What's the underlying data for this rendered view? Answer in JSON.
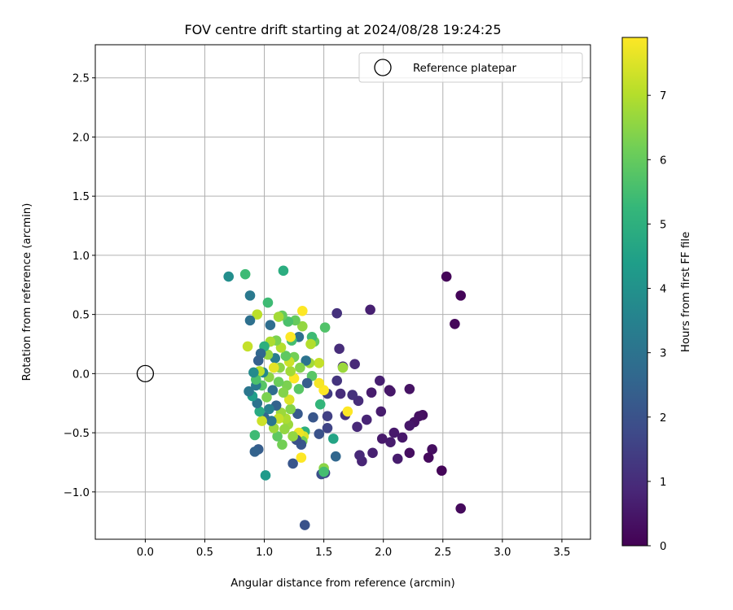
{
  "chart_data": {
    "type": "scatter",
    "title": "FOV centre drift starting at 2024/08/28 19:24:25",
    "xlabel": "Angular distance from reference (arcmin)",
    "ylabel": "Rotation from reference (arcmin)",
    "xlim": [
      -0.42,
      3.74
    ],
    "ylim": [
      -1.4,
      2.78
    ],
    "xticks": [
      0.0,
      0.5,
      1.0,
      1.5,
      2.0,
      2.5,
      3.0,
      3.5
    ],
    "xtick_labels": [
      "0.0",
      "0.5",
      "1.0",
      "1.5",
      "2.0",
      "2.5",
      "3.0",
      "3.5"
    ],
    "yticks": [
      -1.0,
      -0.5,
      0.0,
      0.5,
      1.0,
      1.5,
      2.0,
      2.5
    ],
    "ytick_labels": [
      "−1.0",
      "−0.5",
      "0.0",
      "0.5",
      "1.0",
      "1.5",
      "2.0",
      "2.5"
    ],
    "grid": true,
    "legend": {
      "placement": "top-right",
      "entries": [
        "Reference platepar"
      ]
    },
    "reference_point": {
      "x": 0.0,
      "y": 0.0
    },
    "colorbar": {
      "label": "Hours from first FF file",
      "colormap": "viridis",
      "range": [
        0,
        7.9
      ],
      "ticks": [
        0,
        1,
        2,
        3,
        4,
        5,
        6,
        7
      ],
      "tick_labels": [
        "0",
        "1",
        "2",
        "3",
        "4",
        "5",
        "6",
        "7"
      ],
      "colors": [
        "#440154",
        "#482878",
        "#3e4a89",
        "#31688e",
        "#26828e",
        "#1f9e89",
        "#35b779",
        "#6ece58",
        "#b5de2b",
        "#fde725"
      ]
    },
    "points": [
      {
        "x": 2.53,
        "y": 0.82,
        "t": 0.1
      },
      {
        "x": 2.65,
        "y": 0.66,
        "t": 0.1
      },
      {
        "x": 2.6,
        "y": 0.42,
        "t": 0.15
      },
      {
        "x": 2.49,
        "y": -0.82,
        "t": 0.1
      },
      {
        "x": 2.65,
        "y": -1.14,
        "t": 0.2
      },
      {
        "x": 2.41,
        "y": -0.64,
        "t": 0.3
      },
      {
        "x": 2.38,
        "y": -0.71,
        "t": 0.2
      },
      {
        "x": 2.33,
        "y": -0.35,
        "t": 0.3
      },
      {
        "x": 2.3,
        "y": -0.36,
        "t": 0.35
      },
      {
        "x": 2.26,
        "y": -0.41,
        "t": 0.4
      },
      {
        "x": 2.22,
        "y": -0.44,
        "t": 0.5
      },
      {
        "x": 2.22,
        "y": -0.67,
        "t": 0.3
      },
      {
        "x": 2.16,
        "y": -0.54,
        "t": 0.5
      },
      {
        "x": 2.12,
        "y": -0.72,
        "t": 0.6
      },
      {
        "x": 2.09,
        "y": -0.5,
        "t": 0.55
      },
      {
        "x": 2.06,
        "y": -0.58,
        "t": 0.6
      },
      {
        "x": 1.99,
        "y": -0.55,
        "t": 0.55
      },
      {
        "x": 2.05,
        "y": -0.14,
        "t": 0.45
      },
      {
        "x": 2.06,
        "y": -0.15,
        "t": 0.5
      },
      {
        "x": 2.22,
        "y": -0.13,
        "t": 0.4
      },
      {
        "x": 1.97,
        "y": -0.06,
        "t": 0.7
      },
      {
        "x": 1.98,
        "y": -0.32,
        "t": 0.6
      },
      {
        "x": 1.9,
        "y": -0.16,
        "t": 0.6
      },
      {
        "x": 1.89,
        "y": 0.54,
        "t": 0.7
      },
      {
        "x": 1.91,
        "y": -0.67,
        "t": 0.7
      },
      {
        "x": 1.82,
        "y": -0.74,
        "t": 0.8
      },
      {
        "x": 1.8,
        "y": -0.69,
        "t": 0.9
      },
      {
        "x": 1.86,
        "y": -0.39,
        "t": 0.8
      },
      {
        "x": 1.78,
        "y": -0.45,
        "t": 0.9
      },
      {
        "x": 1.79,
        "y": -0.23,
        "t": 1.0
      },
      {
        "x": 1.74,
        "y": -0.18,
        "t": 1.1
      },
      {
        "x": 1.76,
        "y": 0.08,
        "t": 0.9
      },
      {
        "x": 1.66,
        "y": 0.06,
        "t": 1.0
      },
      {
        "x": 1.63,
        "y": 0.21,
        "t": 1.0
      },
      {
        "x": 1.61,
        "y": 0.51,
        "t": 1.1
      },
      {
        "x": 1.61,
        "y": -0.06,
        "t": 1.2
      },
      {
        "x": 1.64,
        "y": -0.17,
        "t": 1.0
      },
      {
        "x": 1.68,
        "y": -0.35,
        "t": 1.1
      },
      {
        "x": 1.7,
        "y": -0.32,
        "t": 7.9
      },
      {
        "x": 1.66,
        "y": 0.05,
        "t": 6.7
      },
      {
        "x": 1.6,
        "y": -0.7,
        "t": 2.6
      },
      {
        "x": 1.58,
        "y": -0.55,
        "t": 4.6
      },
      {
        "x": 1.53,
        "y": -0.46,
        "t": 1.6
      },
      {
        "x": 1.53,
        "y": -0.36,
        "t": 1.5
      },
      {
        "x": 1.53,
        "y": -0.17,
        "t": 1.4
      },
      {
        "x": 1.51,
        "y": -0.84,
        "t": 1.7
      },
      {
        "x": 1.48,
        "y": -0.85,
        "t": 1.9
      },
      {
        "x": 1.5,
        "y": -0.8,
        "t": 6.5
      },
      {
        "x": 1.5,
        "y": -0.83,
        "t": 5.5
      },
      {
        "x": 1.51,
        "y": 0.39,
        "t": 5.7
      },
      {
        "x": 1.5,
        "y": -0.14,
        "t": 7.9
      },
      {
        "x": 1.46,
        "y": 0.09,
        "t": 7.2
      },
      {
        "x": 1.46,
        "y": -0.08,
        "t": 7.8
      },
      {
        "x": 1.47,
        "y": -0.26,
        "t": 5.2
      },
      {
        "x": 1.46,
        "y": -0.51,
        "t": 2.0
      },
      {
        "x": 1.42,
        "y": 0.27,
        "t": 6.0
      },
      {
        "x": 1.4,
        "y": 0.31,
        "t": 5.4
      },
      {
        "x": 1.39,
        "y": 0.25,
        "t": 7.0
      },
      {
        "x": 1.4,
        "y": -0.02,
        "t": 5.8
      },
      {
        "x": 1.41,
        "y": -0.37,
        "t": 2.1
      },
      {
        "x": 1.38,
        "y": 0.09,
        "t": 6.8
      },
      {
        "x": 1.36,
        "y": -0.08,
        "t": 2.3
      },
      {
        "x": 1.35,
        "y": 0.11,
        "t": 3.0
      },
      {
        "x": 1.34,
        "y": -1.28,
        "t": 2.0
      },
      {
        "x": 1.34,
        "y": -0.49,
        "t": 5.0
      },
      {
        "x": 1.33,
        "y": -0.53,
        "t": 7.5
      },
      {
        "x": 1.32,
        "y": -0.57,
        "t": 6.2
      },
      {
        "x": 1.32,
        "y": 0.53,
        "t": 7.9
      },
      {
        "x": 1.32,
        "y": 0.4,
        "t": 6.6
      },
      {
        "x": 1.31,
        "y": -0.71,
        "t": 7.9
      },
      {
        "x": 1.31,
        "y": -0.6,
        "t": 2.1
      },
      {
        "x": 1.3,
        "y": 0.05,
        "t": 6.4
      },
      {
        "x": 1.29,
        "y": 0.31,
        "t": 2.9
      },
      {
        "x": 1.29,
        "y": -0.13,
        "t": 5.8
      },
      {
        "x": 1.29,
        "y": -0.5,
        "t": 7.7
      },
      {
        "x": 1.28,
        "y": -0.34,
        "t": 2.2
      },
      {
        "x": 1.27,
        "y": -0.56,
        "t": 2.0
      },
      {
        "x": 1.26,
        "y": 0.45,
        "t": 6.0
      },
      {
        "x": 1.25,
        "y": 0.14,
        "t": 6.2
      },
      {
        "x": 1.25,
        "y": -0.04,
        "t": 7.9
      },
      {
        "x": 1.24,
        "y": -0.76,
        "t": 2.1
      },
      {
        "x": 1.24,
        "y": -0.53,
        "t": 6.6
      },
      {
        "x": 1.23,
        "y": 0.28,
        "t": 5.5
      },
      {
        "x": 1.22,
        "y": 0.31,
        "t": 7.9
      },
      {
        "x": 1.22,
        "y": 0.02,
        "t": 6.8
      },
      {
        "x": 1.22,
        "y": -0.3,
        "t": 6.4
      },
      {
        "x": 1.21,
        "y": 0.1,
        "t": 7.3
      },
      {
        "x": 1.21,
        "y": -0.22,
        "t": 7.5
      },
      {
        "x": 1.2,
        "y": 0.44,
        "t": 5.6
      },
      {
        "x": 1.2,
        "y": -0.43,
        "t": 6.7
      },
      {
        "x": 1.19,
        "y": -0.1,
        "t": 6.3
      },
      {
        "x": 1.18,
        "y": -0.38,
        "t": 6.9
      },
      {
        "x": 1.18,
        "y": 0.15,
        "t": 5.9
      },
      {
        "x": 1.17,
        "y": -0.47,
        "t": 6.6
      },
      {
        "x": 1.16,
        "y": 0.87,
        "t": 4.9
      },
      {
        "x": 1.16,
        "y": -0.16,
        "t": 6.4
      },
      {
        "x": 1.15,
        "y": 0.49,
        "t": 6.0
      },
      {
        "x": 1.15,
        "y": -0.6,
        "t": 6.2
      },
      {
        "x": 1.14,
        "y": 0.22,
        "t": 7.0
      },
      {
        "x": 1.14,
        "y": -0.33,
        "t": 6.7
      },
      {
        "x": 1.13,
        "y": 0.05,
        "t": 6.5
      },
      {
        "x": 1.12,
        "y": 0.48,
        "t": 6.8
      },
      {
        "x": 1.12,
        "y": -0.07,
        "t": 6.1
      },
      {
        "x": 1.12,
        "y": -0.38,
        "t": 7.2
      },
      {
        "x": 1.11,
        "y": -0.53,
        "t": 5.9
      },
      {
        "x": 1.1,
        "y": 0.28,
        "t": 6.3
      },
      {
        "x": 1.1,
        "y": -0.27,
        "t": 2.5
      },
      {
        "x": 1.09,
        "y": 0.13,
        "t": 3.3
      },
      {
        "x": 1.08,
        "y": -0.46,
        "t": 6.7
      },
      {
        "x": 1.08,
        "y": 0.05,
        "t": 7.6
      },
      {
        "x": 1.07,
        "y": -0.14,
        "t": 2.8
      },
      {
        "x": 1.06,
        "y": -0.4,
        "t": 3.1
      },
      {
        "x": 1.05,
        "y": 0.27,
        "t": 6.9
      },
      {
        "x": 1.05,
        "y": 0.41,
        "t": 2.8
      },
      {
        "x": 1.04,
        "y": -0.03,
        "t": 6.5
      },
      {
        "x": 1.04,
        "y": -0.3,
        "t": 3.4
      },
      {
        "x": 1.03,
        "y": 0.6,
        "t": 5.4
      },
      {
        "x": 1.03,
        "y": 0.16,
        "t": 6.6
      },
      {
        "x": 1.02,
        "y": -0.2,
        "t": 6.3
      },
      {
        "x": 1.01,
        "y": -0.86,
        "t": 4.3
      },
      {
        "x": 1.0,
        "y": 0.23,
        "t": 5.0
      },
      {
        "x": 1.0,
        "y": -0.37,
        "t": 2.6
      },
      {
        "x": 0.99,
        "y": 0.01,
        "t": 3.7
      },
      {
        "x": 0.98,
        "y": -0.4,
        "t": 7.3
      },
      {
        "x": 0.98,
        "y": -0.1,
        "t": 5.8
      },
      {
        "x": 0.97,
        "y": 0.17,
        "t": 2.6
      },
      {
        "x": 0.96,
        "y": 0.02,
        "t": 7.1
      },
      {
        "x": 0.96,
        "y": -0.32,
        "t": 4.8
      },
      {
        "x": 0.95,
        "y": -0.64,
        "t": 2.3
      },
      {
        "x": 0.95,
        "y": 0.11,
        "t": 2.4
      },
      {
        "x": 0.94,
        "y": 0.5,
        "t": 7.1
      },
      {
        "x": 0.94,
        "y": -0.25,
        "t": 3.0
      },
      {
        "x": 0.93,
        "y": -0.1,
        "t": 3.2
      },
      {
        "x": 0.93,
        "y": -0.05,
        "t": 5.6
      },
      {
        "x": 0.92,
        "y": -0.66,
        "t": 2.5
      },
      {
        "x": 0.92,
        "y": -0.52,
        "t": 5.4
      },
      {
        "x": 0.91,
        "y": 0.01,
        "t": 3.8
      },
      {
        "x": 0.9,
        "y": -0.19,
        "t": 4.4
      },
      {
        "x": 0.88,
        "y": 0.45,
        "t": 2.9
      },
      {
        "x": 0.88,
        "y": 0.66,
        "t": 3.2
      },
      {
        "x": 0.87,
        "y": -0.15,
        "t": 3.1
      },
      {
        "x": 0.86,
        "y": 0.23,
        "t": 7.2
      },
      {
        "x": 0.84,
        "y": 0.84,
        "t": 5.4
      },
      {
        "x": 0.7,
        "y": 0.82,
        "t": 3.9
      }
    ]
  }
}
